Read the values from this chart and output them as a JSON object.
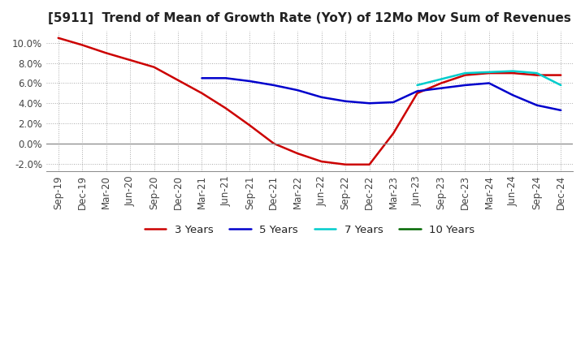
{
  "title": "[5911]  Trend of Mean of Growth Rate (YoY) of 12Mo Mov Sum of Revenues",
  "ylim": [
    -0.028,
    0.112
  ],
  "yticks": [
    -0.02,
    0.0,
    0.02,
    0.04,
    0.06,
    0.08,
    0.1
  ],
  "ytick_labels": [
    "-2.0%",
    "0.0%",
    "2.0%",
    "4.0%",
    "6.0%",
    "8.0%",
    "10.0%"
  ],
  "x_labels": [
    "Sep-19",
    "Dec-19",
    "Mar-20",
    "Jun-20",
    "Sep-20",
    "Dec-20",
    "Mar-21",
    "Jun-21",
    "Sep-21",
    "Dec-21",
    "Mar-22",
    "Jun-22",
    "Sep-22",
    "Dec-22",
    "Mar-23",
    "Jun-23",
    "Sep-23",
    "Dec-23",
    "Mar-24",
    "Jun-24",
    "Sep-24",
    "Dec-24"
  ],
  "series": {
    "3 Years": {
      "color": "#cc0000",
      "data": [
        0.105,
        0.098,
        0.09,
        0.083,
        0.076,
        0.063,
        0.05,
        0.035,
        0.018,
        0.0,
        -0.01,
        -0.018,
        -0.021,
        -0.021,
        0.01,
        0.05,
        0.06,
        0.068,
        0.07,
        0.07,
        0.068,
        0.068
      ]
    },
    "5 Years": {
      "color": "#0000cc",
      "data": [
        null,
        null,
        null,
        null,
        null,
        null,
        0.065,
        0.065,
        0.062,
        0.058,
        0.053,
        0.046,
        0.042,
        0.04,
        0.041,
        0.052,
        0.055,
        0.058,
        0.06,
        0.048,
        0.038,
        0.033
      ]
    },
    "7 Years": {
      "color": "#00cccc",
      "data": [
        null,
        null,
        null,
        null,
        null,
        null,
        null,
        null,
        null,
        null,
        null,
        null,
        null,
        null,
        null,
        0.058,
        0.064,
        0.07,
        0.071,
        0.072,
        0.07,
        0.058
      ]
    },
    "10 Years": {
      "color": "#006600",
      "data": [
        null,
        null,
        null,
        null,
        null,
        null,
        null,
        null,
        null,
        null,
        null,
        null,
        null,
        null,
        null,
        null,
        null,
        null,
        null,
        null,
        null,
        null
      ]
    }
  },
  "legend_labels": [
    "3 Years",
    "5 Years",
    "7 Years",
    "10 Years"
  ],
  "background_color": "#ffffff",
  "grid_color": "#aaaaaa",
  "title_fontsize": 11,
  "tick_fontsize": 8.5
}
